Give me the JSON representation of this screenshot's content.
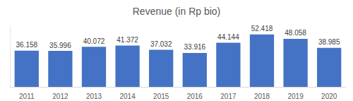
{
  "chart_data": {
    "type": "bar",
    "title": "Revenue (in Rp bio)",
    "categories": [
      "2011",
      "2012",
      "2013",
      "2014",
      "2015",
      "2016",
      "2017",
      "2018",
      "2019",
      "2020"
    ],
    "values": [
      36.158,
      35.996,
      40.072,
      41.372,
      37.032,
      33.916,
      44.144,
      52.418,
      48.058,
      38.985
    ],
    "color": "#4472c4",
    "ylim": [
      0,
      60
    ],
    "grid": false,
    "data_labels": true,
    "tick_labels": "x"
  }
}
